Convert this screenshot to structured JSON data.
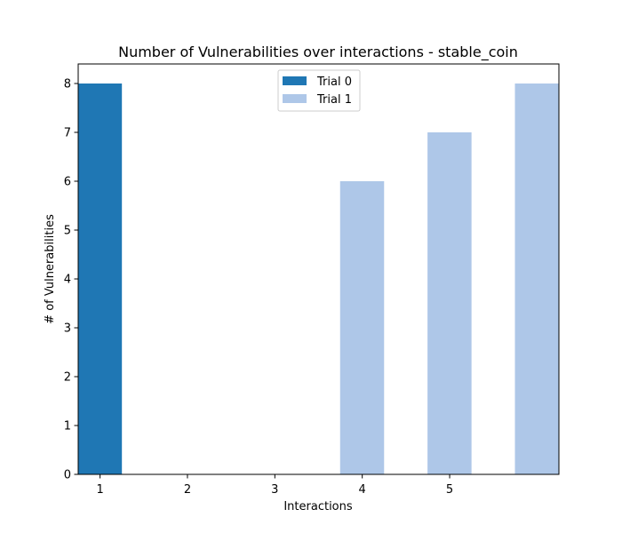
{
  "chart_data": {
    "type": "bar",
    "title": "Number of Vulnerabilities over interactions - stable_coin",
    "xlabel": "Interactions",
    "ylabel": "# of Vulnerabilities",
    "x_ticks": [
      "1",
      "2",
      "3",
      "4",
      "5"
    ],
    "y_ticks": [
      "0",
      "1",
      "2",
      "3",
      "4",
      "5",
      "6",
      "7",
      "8"
    ],
    "xlim": [
      0.75,
      6.25
    ],
    "ylim": [
      0,
      8.4
    ],
    "legend_position": "top-center",
    "grid": false,
    "series": [
      {
        "name": "Trial 0",
        "color": "#1f77b4",
        "x": [
          1.25
        ],
        "values": [
          8
        ]
      },
      {
        "name": "Trial 1",
        "color": "#aec7e8",
        "x": [
          4.25,
          5.25,
          6.25
        ],
        "values": [
          6,
          7,
          8
        ]
      }
    ]
  }
}
